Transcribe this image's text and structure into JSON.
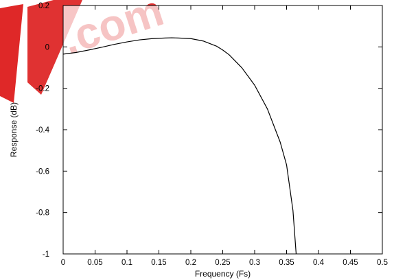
{
  "chart_data": {
    "type": "line",
    "title": "",
    "xlabel": "Frequency (Fs)",
    "ylabel": "Response (dB)",
    "xlim": [
      0,
      0.5
    ],
    "ylim": [
      -1,
      0.2
    ],
    "x_ticks": [
      0,
      0.05,
      0.1,
      0.15,
      0.2,
      0.25,
      0.3,
      0.35,
      0.4,
      0.45,
      0.5
    ],
    "x_tick_labels": [
      "0",
      "0.05",
      "0.1",
      "0.15",
      "0.2",
      "0.25",
      "0.3",
      "0.35",
      "0.4",
      "0.45",
      "0.5"
    ],
    "y_ticks": [
      0.2,
      0,
      -0.2,
      -0.4,
      -0.6,
      -0.8,
      -1
    ],
    "y_tick_labels": [
      "0.2",
      "0",
      "-0.2",
      "-0.4",
      "-0.6",
      "-0.8",
      "-1"
    ],
    "grid": false,
    "legend": "none",
    "series": [
      {
        "color": "#000000",
        "x": [
          0,
          0.02,
          0.04,
          0.06,
          0.08,
          0.1,
          0.12,
          0.14,
          0.16,
          0.17,
          0.18,
          0.2,
          0.22,
          0.24,
          0.25,
          0.26,
          0.28,
          0.3,
          0.32,
          0.34,
          0.35,
          0.36,
          0.365
        ],
        "y": [
          -0.035,
          -0.027,
          -0.015,
          -0.002,
          0.012,
          0.024,
          0.034,
          0.04,
          0.043,
          0.044,
          0.043,
          0.04,
          0.028,
          0.004,
          -0.015,
          -0.038,
          -0.101,
          -0.185,
          -0.3,
          -0.46,
          -0.57,
          -0.79,
          -1.0
        ]
      }
    ]
  },
  "watermark": {
    "text": ".com",
    "color": "#dd1c1c"
  }
}
